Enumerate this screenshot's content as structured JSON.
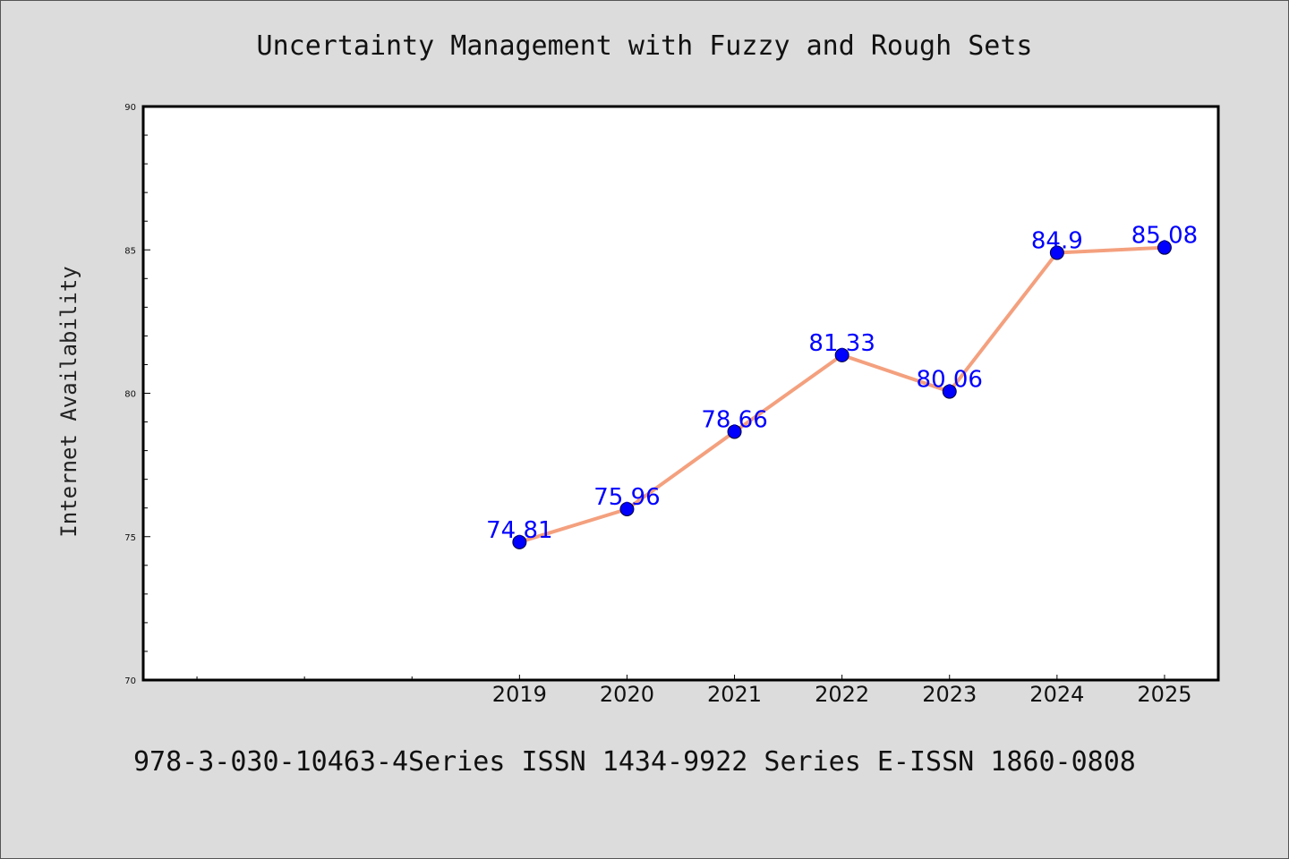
{
  "chart_data": {
    "type": "line",
    "title": "Uncertainty Management with Fuzzy and Rough Sets",
    "ylabel": "Internet Availability",
    "xlabel": "",
    "x": [
      "2019",
      "2020",
      "2021",
      "2022",
      "2023",
      "2024",
      "2025"
    ],
    "series": [
      {
        "values": [
          74.81,
          75.96,
          78.66,
          81.33,
          80.06,
          84.9,
          85.08
        ],
        "labels": [
          "74.81",
          "75.96",
          "78.66",
          "81.33",
          "80.06",
          "84.9",
          "85.08"
        ]
      }
    ],
    "ylim": [
      70,
      90
    ],
    "yticks": [
      "70",
      "75",
      "80",
      "85",
      "90"
    ],
    "xlim": [
      2015.5,
      2025.5
    ],
    "grid": false,
    "line_color": "#f4a07e",
    "marker_color": "#0000ff",
    "label_color": "#0000ff"
  },
  "footer": "978-3-030-10463-4Series ISSN 1434-9922 Series E-ISSN 1860-0808"
}
